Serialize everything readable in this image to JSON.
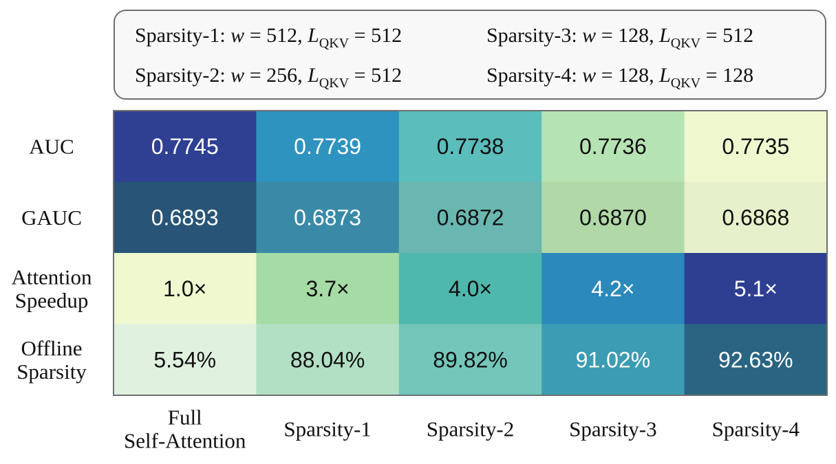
{
  "legend": {
    "items": [
      {
        "name": "Sparsity-1",
        "w": "512",
        "l": "512"
      },
      {
        "name": "Sparsity-2",
        "w": "256",
        "l": "512"
      },
      {
        "name": "Sparsity-3",
        "w": "128",
        "l": "512"
      },
      {
        "name": "Sparsity-4",
        "w": "128",
        "l": "128"
      }
    ],
    "w_symbol": "w",
    "l_symbol": "L",
    "l_subscript": "QKV",
    "separator": ":",
    "equals": "=",
    "comma": ","
  },
  "chart_data": {
    "type": "heatmap",
    "title": "",
    "xlabel": "",
    "ylabel": "",
    "colormap": "YlGnBu",
    "x_categories": [
      [
        "Full",
        "Self-Attention"
      ],
      [
        "Sparsity-1"
      ],
      [
        "Sparsity-2"
      ],
      [
        "Sparsity-3"
      ],
      [
        "Sparsity-4"
      ]
    ],
    "y_categories": [
      [
        "AUC"
      ],
      [
        "GAUC"
      ],
      [
        "Attention",
        "Speedup"
      ],
      [
        "Offline",
        "Sparsity"
      ]
    ],
    "values": [
      [
        0.7745,
        0.7739,
        0.7738,
        0.7736,
        0.7735
      ],
      [
        0.6893,
        0.6873,
        0.6872,
        0.687,
        0.6868
      ],
      [
        1.0,
        3.7,
        4.0,
        4.2,
        5.1
      ],
      [
        5.54,
        88.04,
        89.82,
        91.02,
        92.63
      ]
    ],
    "labels": [
      [
        "0.7745",
        "0.7739",
        "0.7738",
        "0.7736",
        "0.7735"
      ],
      [
        "0.6893",
        "0.6873",
        "0.6872",
        "0.6870",
        "0.6868"
      ],
      [
        "1.0×",
        "3.7×",
        "4.0×",
        "4.2×",
        "5.1×"
      ],
      [
        "5.54%",
        "88.04%",
        "89.82%",
        "91.02%",
        "92.63%"
      ]
    ],
    "cell_colors": [
      [
        "#2f3f92",
        "#2f93bf",
        "#5bbdbc",
        "#b6e3b4",
        "#eff7ce"
      ],
      [
        "#285577",
        "#3a8aa7",
        "#69b7b0",
        "#b1d8a7",
        "#e6f0cb"
      ],
      [
        "#eff8ce",
        "#a5dba4",
        "#4fb8ad",
        "#2c89bb",
        "#2e3f92"
      ],
      [
        "#e1f1e0",
        "#b2e0c5",
        "#74c6ba",
        "#3b9cb4",
        "#2a6482"
      ]
    ],
    "label_colors": [
      [
        "#ffffff",
        "#ffffff",
        "#111111",
        "#111111",
        "#111111"
      ],
      [
        "#ffffff",
        "#ffffff",
        "#111111",
        "#111111",
        "#111111"
      ],
      [
        "#111111",
        "#111111",
        "#111111",
        "#ffffff",
        "#ffffff"
      ],
      [
        "#111111",
        "#111111",
        "#111111",
        "#ffffff",
        "#ffffff"
      ]
    ],
    "grid": false,
    "legend_placement": "top"
  }
}
